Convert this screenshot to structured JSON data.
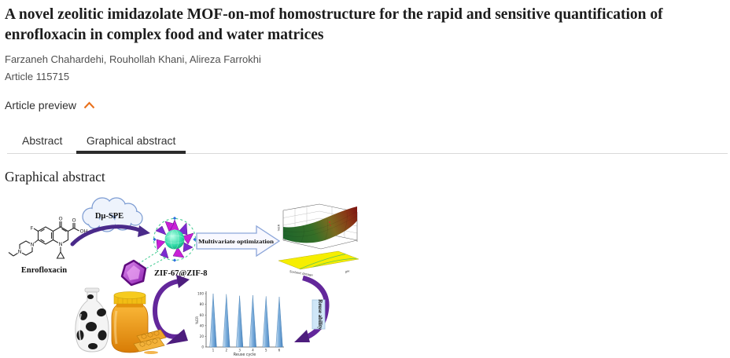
{
  "article": {
    "title": "A novel zeolitic imidazolate MOF-on-mof homostructure for the rapid and sensitive quantification of enrofloxacin in complex food and water matrices",
    "authors": "Farzaneh Chahardehi, Rouhollah Khani, Alireza Farrokhi",
    "number": "Article 115715"
  },
  "preview": {
    "label": "Article preview",
    "state": "expanded"
  },
  "tabs": [
    {
      "label": "Abstract",
      "active": false
    },
    {
      "label": "Graphical abstract",
      "active": true
    }
  ],
  "section": {
    "heading": "Graphical abstract"
  },
  "figure": {
    "labels": {
      "molecule": "Enrofloxacin",
      "cloud": "Dμ-SPE",
      "mof": "ZIF-67@ZIF-8",
      "process_arrow": "Multivariate optimization",
      "reuse": "Reuse ability"
    },
    "atoms": {
      "f": "F",
      "n1": "N",
      "n2": "N",
      "n3": "N",
      "o1": "O",
      "o2": "O",
      "oh": "OH"
    }
  },
  "colors": {
    "accent_orange": "#e9711c",
    "tab_ink": "#2b2b2b",
    "arrow_purple": "#5e2b8f",
    "spike_blue": "#5b9bd5",
    "gem_purple": "#9c27b0",
    "sphere_teal": "#12b487",
    "contour_yellow": "#f6ee00"
  },
  "chart_data": [
    {
      "type": "bar",
      "title": "Reusability",
      "categories": [
        "1",
        "2",
        "3",
        "4",
        "5",
        "6"
      ],
      "values": [
        100,
        99,
        96,
        97,
        95,
        94
      ],
      "xlabel": "Reuse cycle",
      "ylabel": "%ER",
      "ylim": [
        0,
        100
      ],
      "yticks": [
        0,
        20,
        40,
        60,
        80,
        100
      ],
      "grid": false,
      "legend": false,
      "note": "narrow spike-shaped bars"
    },
    {
      "type": "area",
      "subtype": "3d-response-surface",
      "xlabel": "Sorbent dosage",
      "ylabel": "pH",
      "zlabel": "%ER",
      "surface_colors": [
        "#1d6b2f",
        "#7c1212"
      ],
      "base": "yellow contour plane with green contour lines"
    }
  ]
}
